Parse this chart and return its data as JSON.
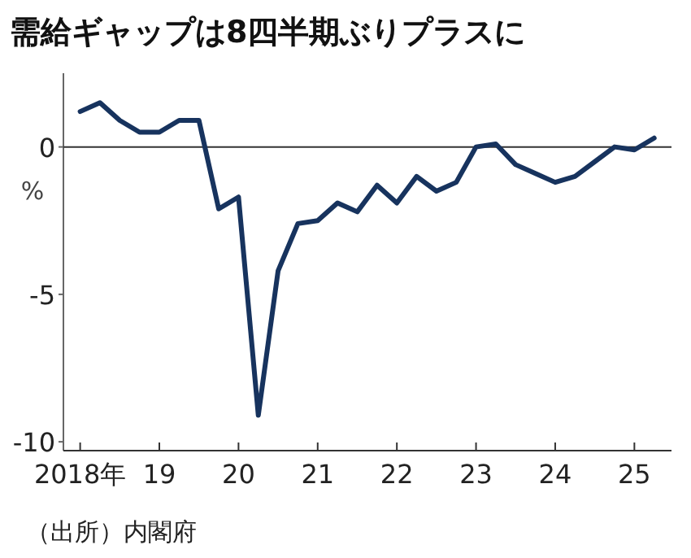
{
  "chart_data": {
    "type": "line",
    "title": "需給ギャップは8四半期ぶりプラスに",
    "ylabel": "%",
    "annotations": [
      "（出所）内閣府"
    ],
    "x": [
      "2018-01",
      "2018-04",
      "2018-07",
      "2018-10",
      "2019-01",
      "2019-04",
      "2019-07",
      "2019-10",
      "2020-01",
      "2020-04",
      "2020-07",
      "2020-10",
      "2021-01",
      "2021-04",
      "2021-07",
      "2021-10",
      "2022-01",
      "2022-04",
      "2022-07",
      "2022-10",
      "2023-01",
      "2023-04",
      "2023-07",
      "2023-10",
      "2024-01",
      "2024-04",
      "2024-07",
      "2024-10",
      "2025-01",
      "2025-04"
    ],
    "series": [
      {
        "color": "#17335e",
        "values": [
          1.2,
          1.5,
          0.9,
          0.5,
          0.5,
          0.9,
          0.9,
          -2.1,
          -1.7,
          -9.1,
          -4.2,
          -2.6,
          -2.5,
          -1.9,
          -2.2,
          -1.3,
          -1.9,
          -1.0,
          -1.5,
          -1.2,
          0.0,
          0.1,
          -0.6,
          -0.9,
          -1.2,
          -1.0,
          -0.5,
          0.0,
          -0.1,
          0.3
        ]
      }
    ],
    "xlim": [
      "2017-10-15",
      "2025-06-20"
    ],
    "xticks": [
      {
        "value": "2018",
        "label": "2018年"
      },
      {
        "value": "2019",
        "label": "19"
      },
      {
        "value": "2020",
        "label": "20"
      },
      {
        "value": "2021",
        "label": "21"
      },
      {
        "value": "2022",
        "label": "22"
      },
      {
        "value": "2023",
        "label": "23"
      },
      {
        "value": "2024",
        "label": "24"
      },
      {
        "value": "2025",
        "label": "25"
      }
    ],
    "ylim": [
      -10.3,
      2.5
    ],
    "yticks": [
      0,
      -5,
      -10
    ],
    "ref_lines": [
      {
        "axis": "y",
        "value": 0,
        "color": "#333333"
      }
    ],
    "grid": false,
    "marker": "none",
    "line_style": "solid"
  }
}
